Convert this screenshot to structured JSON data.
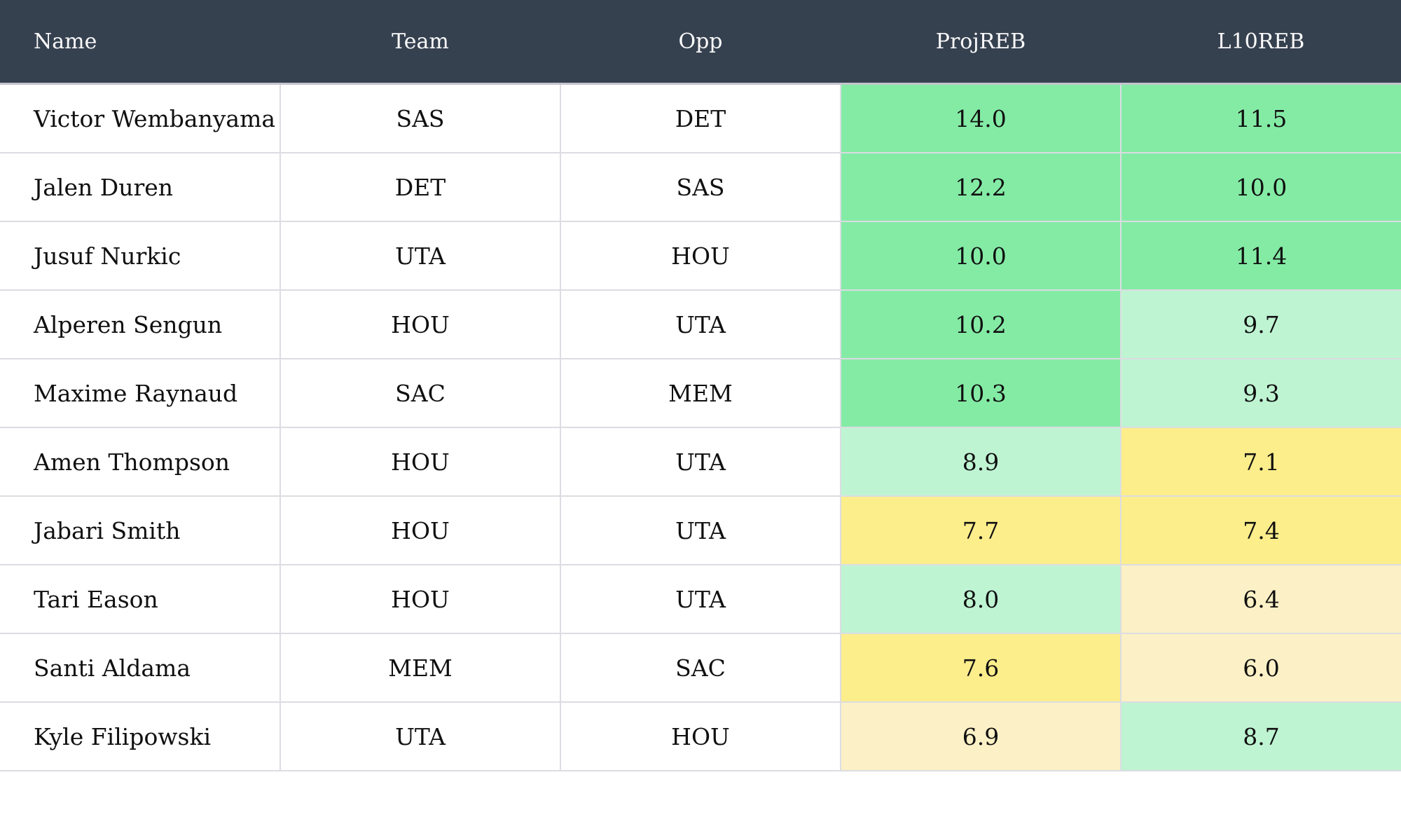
{
  "colors": {
    "header_bg": "#364150",
    "header_text": "#FAFAFA",
    "row_bg": "#FFFFFF",
    "grid_line": "#DCDCE2",
    "text": "#101010",
    "scale": {
      "strong_green": "#84EBA5",
      "light_green": "#BFF4D3",
      "yellow": "#FDEE8C",
      "pale_yellow": "#FCF1C6"
    }
  },
  "table": {
    "columns": [
      {
        "key": "name",
        "label": "Name",
        "align": "left"
      },
      {
        "key": "team",
        "label": "Team",
        "align": "center"
      },
      {
        "key": "opp",
        "label": "Opp",
        "align": "center"
      },
      {
        "key": "projreb",
        "label": "ProjREB",
        "align": "center"
      },
      {
        "key": "l10reb",
        "label": "L10REB",
        "align": "center"
      }
    ],
    "rows": [
      {
        "name": "Victor Wembanyama",
        "team": "SAS",
        "opp": "DET",
        "projreb": "14.0",
        "projreb_level": "strong_green",
        "l10reb": "11.5",
        "l10reb_level": "strong_green"
      },
      {
        "name": "Jalen Duren",
        "team": "DET",
        "opp": "SAS",
        "projreb": "12.2",
        "projreb_level": "strong_green",
        "l10reb": "10.0",
        "l10reb_level": "strong_green"
      },
      {
        "name": "Jusuf Nurkic",
        "team": "UTA",
        "opp": "HOU",
        "projreb": "10.0",
        "projreb_level": "strong_green",
        "l10reb": "11.4",
        "l10reb_level": "strong_green"
      },
      {
        "name": "Alperen Sengun",
        "team": "HOU",
        "opp": "UTA",
        "projreb": "10.2",
        "projreb_level": "strong_green",
        "l10reb": "9.7",
        "l10reb_level": "light_green"
      },
      {
        "name": "Maxime Raynaud",
        "team": "SAC",
        "opp": "MEM",
        "projreb": "10.3",
        "projreb_level": "strong_green",
        "l10reb": "9.3",
        "l10reb_level": "light_green"
      },
      {
        "name": "Amen Thompson",
        "team": "HOU",
        "opp": "UTA",
        "projreb": "8.9",
        "projreb_level": "light_green",
        "l10reb": "7.1",
        "l10reb_level": "yellow"
      },
      {
        "name": "Jabari Smith",
        "team": "HOU",
        "opp": "UTA",
        "projreb": "7.7",
        "projreb_level": "yellow",
        "l10reb": "7.4",
        "l10reb_level": "yellow"
      },
      {
        "name": "Tari Eason",
        "team": "HOU",
        "opp": "UTA",
        "projreb": "8.0",
        "projreb_level": "light_green",
        "l10reb": "6.4",
        "l10reb_level": "pale_yellow"
      },
      {
        "name": "Santi Aldama",
        "team": "MEM",
        "opp": "SAC",
        "projreb": "7.6",
        "projreb_level": "yellow",
        "l10reb": "6.0",
        "l10reb_level": "pale_yellow"
      },
      {
        "name": "Kyle Filipowski",
        "team": "UTA",
        "opp": "HOU",
        "projreb": "6.9",
        "projreb_level": "pale_yellow",
        "l10reb": "8.7",
        "l10reb_level": "light_green"
      }
    ]
  }
}
